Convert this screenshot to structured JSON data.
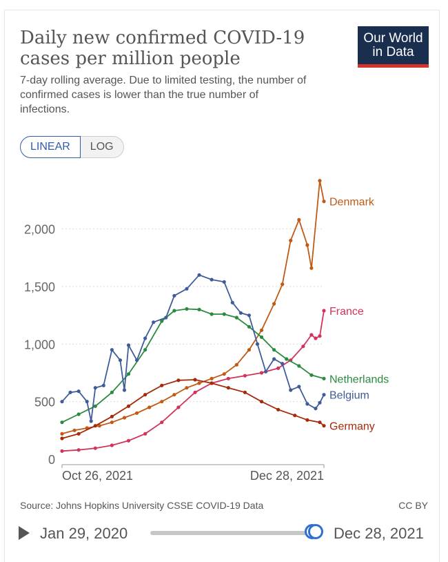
{
  "header": {
    "title": "Daily new confirmed COVID-19 cases per million people",
    "subtitle": "7-day rolling average. Due to limited testing, the number of confirmed cases is lower than the true number of infections.",
    "logo_line1": "Our World",
    "logo_line2": "in Data"
  },
  "scale_toggle": {
    "linear_label": "LINEAR",
    "log_label": "LOG",
    "selected": "LINEAR"
  },
  "footer": {
    "source": "Source: Johns Hopkins University CSSE COVID-19 Data",
    "license": "CC BY"
  },
  "timeline": {
    "start_label": "Jan 29, 2020",
    "end_label": "Dec 28, 2021",
    "selection_start_fraction": 0.98,
    "selection_end_fraction": 1.0
  },
  "colors": {
    "Denmark": "#bf5a14",
    "France": "#d0345a",
    "Netherlands": "#2a8a3e",
    "Belgium": "#3e5c9a",
    "Germany": "#a52a0a",
    "accent": "#2e5ca8",
    "grid": "#d9d9d9"
  },
  "chart_data": {
    "type": "line",
    "title": "Daily new confirmed COVID-19 cases per million people",
    "xlabel": "",
    "ylabel": "",
    "x_tick_labels": [
      "Oct 26, 2021",
      "Dec 28, 2021"
    ],
    "x_range": [
      "2021-10-26",
      "2021-12-28"
    ],
    "y_ticks": [
      0,
      500,
      1000,
      1500,
      2000
    ],
    "y_tick_labels": [
      "0",
      "500",
      "1,000",
      "1,500",
      "2,000"
    ],
    "ylim": [
      0,
      2400
    ],
    "grid": "horizontal dotted",
    "legend": "labels at line ends",
    "series": [
      {
        "name": "Denmark",
        "points": [
          [
            "2021-10-26",
            220
          ],
          [
            "2021-10-29",
            250
          ],
          [
            "2021-11-01",
            270
          ],
          [
            "2021-11-04",
            290
          ],
          [
            "2021-11-07",
            320
          ],
          [
            "2021-11-10",
            360
          ],
          [
            "2021-11-13",
            400
          ],
          [
            "2021-11-16",
            450
          ],
          [
            "2021-11-19",
            500
          ],
          [
            "2021-11-22",
            560
          ],
          [
            "2021-11-25",
            620
          ],
          [
            "2021-11-28",
            660
          ],
          [
            "2021-12-01",
            700
          ],
          [
            "2021-12-04",
            740
          ],
          [
            "2021-12-07",
            820
          ],
          [
            "2021-12-10",
            950
          ],
          [
            "2021-12-13",
            1120
          ],
          [
            "2021-12-16",
            1350
          ],
          [
            "2021-12-18",
            1520
          ],
          [
            "2021-12-20",
            1900
          ],
          [
            "2021-12-22",
            2080
          ],
          [
            "2021-12-24",
            1860
          ],
          [
            "2021-12-25",
            1660
          ],
          [
            "2021-12-27",
            2420
          ],
          [
            "2021-12-28",
            2240
          ]
        ]
      },
      {
        "name": "France",
        "points": [
          [
            "2021-10-26",
            70
          ],
          [
            "2021-10-30",
            80
          ],
          [
            "2021-11-03",
            95
          ],
          [
            "2021-11-07",
            120
          ],
          [
            "2021-11-11",
            160
          ],
          [
            "2021-11-15",
            220
          ],
          [
            "2021-11-19",
            320
          ],
          [
            "2021-11-23",
            450
          ],
          [
            "2021-11-27",
            580
          ],
          [
            "2021-12-01",
            660
          ],
          [
            "2021-12-05",
            700
          ],
          [
            "2021-12-09",
            725
          ],
          [
            "2021-12-13",
            750
          ],
          [
            "2021-12-17",
            790
          ],
          [
            "2021-12-20",
            860
          ],
          [
            "2021-12-23",
            980
          ],
          [
            "2021-12-25",
            1080
          ],
          [
            "2021-12-26",
            1050
          ],
          [
            "2021-12-27",
            1070
          ],
          [
            "2021-12-28",
            1290
          ]
        ]
      },
      {
        "name": "Netherlands",
        "points": [
          [
            "2021-10-26",
            320
          ],
          [
            "2021-10-30",
            390
          ],
          [
            "2021-11-03",
            460
          ],
          [
            "2021-11-07",
            580
          ],
          [
            "2021-11-11",
            740
          ],
          [
            "2021-11-15",
            950
          ],
          [
            "2021-11-19",
            1200
          ],
          [
            "2021-11-22",
            1290
          ],
          [
            "2021-11-25",
            1305
          ],
          [
            "2021-11-28",
            1300
          ],
          [
            "2021-12-01",
            1260
          ],
          [
            "2021-12-04",
            1260
          ],
          [
            "2021-12-07",
            1230
          ],
          [
            "2021-12-10",
            1150
          ],
          [
            "2021-12-13",
            1060
          ],
          [
            "2021-12-16",
            950
          ],
          [
            "2021-12-19",
            870
          ],
          [
            "2021-12-22",
            810
          ],
          [
            "2021-12-25",
            730
          ],
          [
            "2021-12-28",
            700
          ]
        ]
      },
      {
        "name": "Belgium",
        "points": [
          [
            "2021-10-26",
            500
          ],
          [
            "2021-10-28",
            580
          ],
          [
            "2021-10-30",
            590
          ],
          [
            "2021-11-01",
            500
          ],
          [
            "2021-11-02",
            330
          ],
          [
            "2021-11-03",
            620
          ],
          [
            "2021-11-05",
            640
          ],
          [
            "2021-11-07",
            950
          ],
          [
            "2021-11-09",
            860
          ],
          [
            "2021-11-10",
            600
          ],
          [
            "2021-11-11",
            990
          ],
          [
            "2021-11-13",
            860
          ],
          [
            "2021-11-15",
            1050
          ],
          [
            "2021-11-17",
            1190
          ],
          [
            "2021-11-20",
            1230
          ],
          [
            "2021-11-22",
            1420
          ],
          [
            "2021-11-25",
            1480
          ],
          [
            "2021-11-28",
            1600
          ],
          [
            "2021-12-01",
            1560
          ],
          [
            "2021-12-04",
            1540
          ],
          [
            "2021-12-06",
            1360
          ],
          [
            "2021-12-08",
            1270
          ],
          [
            "2021-12-10",
            1250
          ],
          [
            "2021-12-12",
            1000
          ],
          [
            "2021-12-14",
            760
          ],
          [
            "2021-12-16",
            870
          ],
          [
            "2021-12-18",
            830
          ],
          [
            "2021-12-20",
            600
          ],
          [
            "2021-12-22",
            630
          ],
          [
            "2021-12-24",
            480
          ],
          [
            "2021-12-26",
            440
          ],
          [
            "2021-12-27",
            490
          ],
          [
            "2021-12-28",
            560
          ]
        ]
      },
      {
        "name": "Germany",
        "points": [
          [
            "2021-10-26",
            180
          ],
          [
            "2021-10-30",
            220
          ],
          [
            "2021-11-03",
            290
          ],
          [
            "2021-11-07",
            370
          ],
          [
            "2021-11-11",
            460
          ],
          [
            "2021-11-15",
            560
          ],
          [
            "2021-11-19",
            640
          ],
          [
            "2021-11-23",
            685
          ],
          [
            "2021-11-27",
            690
          ],
          [
            "2021-12-01",
            660
          ],
          [
            "2021-12-05",
            620
          ],
          [
            "2021-12-09",
            580
          ],
          [
            "2021-12-13",
            500
          ],
          [
            "2021-12-17",
            430
          ],
          [
            "2021-12-21",
            380
          ],
          [
            "2021-12-24",
            340
          ],
          [
            "2021-12-27",
            320
          ],
          [
            "2021-12-28",
            290
          ]
        ]
      }
    ]
  }
}
